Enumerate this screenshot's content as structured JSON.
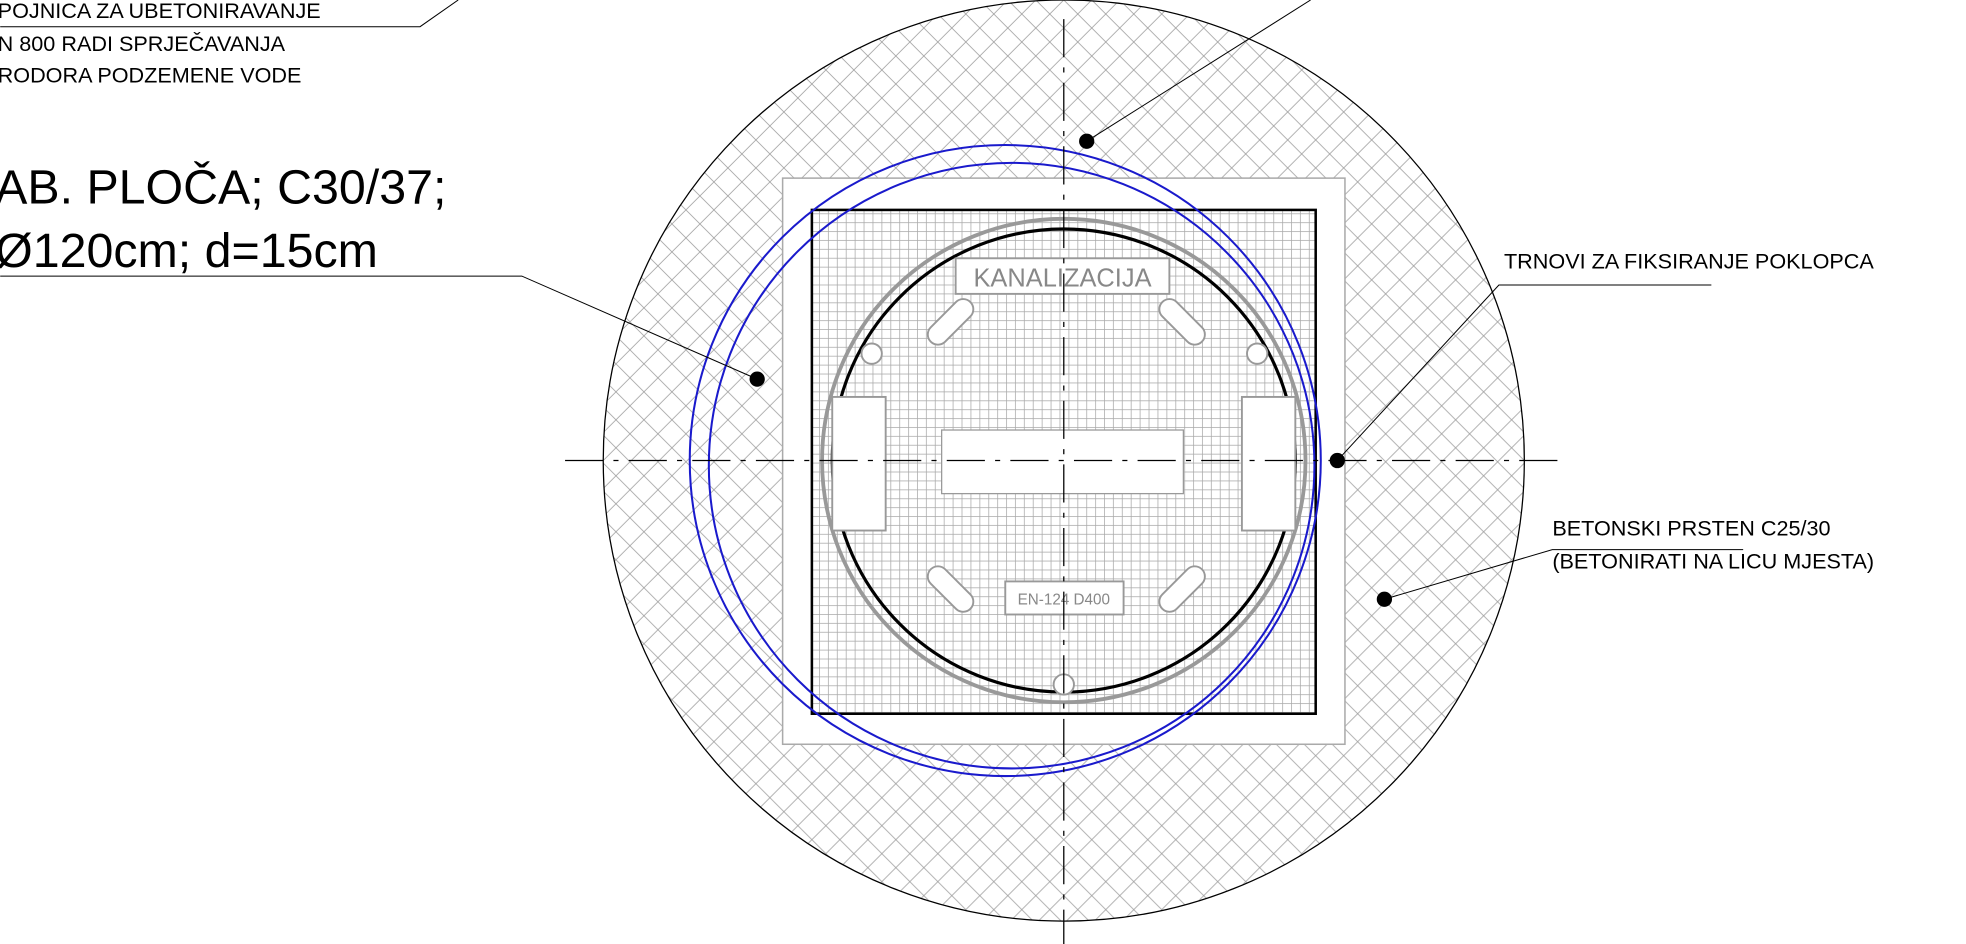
{
  "notes": {
    "top_left": [
      "POJNICA ZA UBETONIRAVANJE",
      "N 800 RADI SPRJEČAVANJA",
      "RODORA PODZEMENE VODE"
    ],
    "slab": [
      "AB. PLOČA; C30/37;",
      "Ø120cm; d=15cm"
    ],
    "pins": "TRNOVI ZA FIKSIRANJE POKLOPCA",
    "ring": [
      "BETONSKI PRSTEN C25/30",
      "(BETONIRATI NA LICU MJESTA)"
    ]
  },
  "cover": {
    "label": "KANALIZACIJA",
    "standard": "EN-124 D400"
  }
}
